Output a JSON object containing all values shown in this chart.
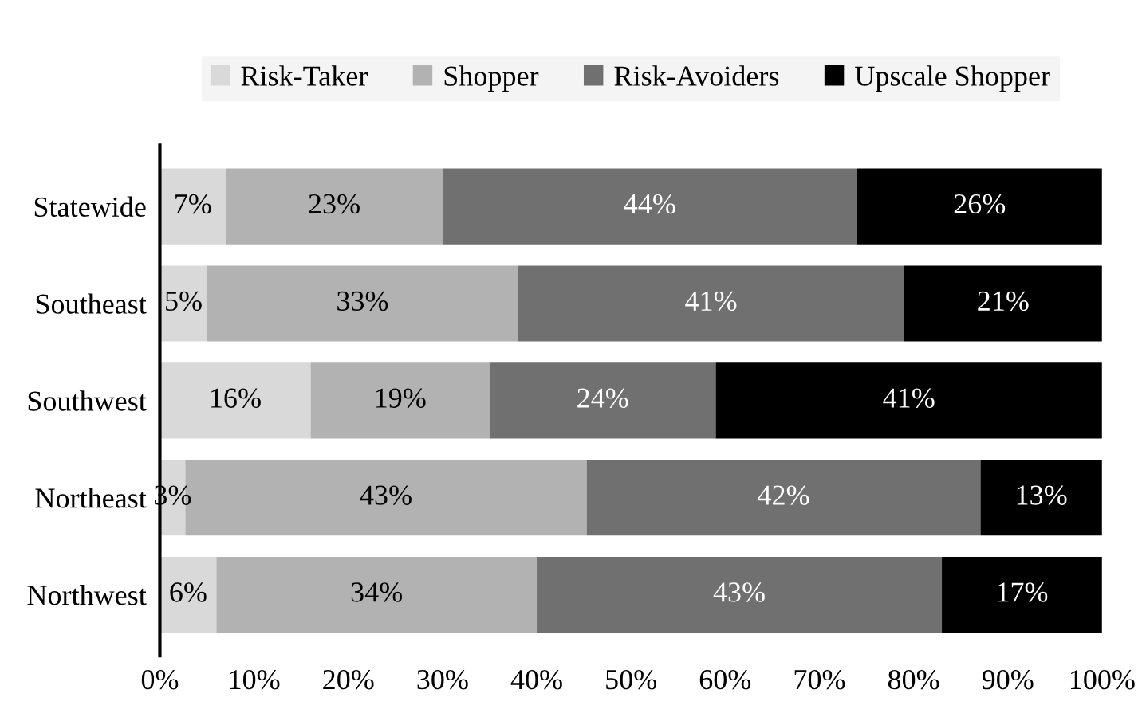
{
  "chart_data": {
    "type": "bar",
    "orientation": "horizontal",
    "stacked": true,
    "categories": [
      "Statewide",
      "Southeast",
      "Southwest",
      "Northeast",
      "Northwest"
    ],
    "series": [
      {
        "name": "Risk-Taker",
        "color": "#d9d9d9",
        "values": [
          7,
          5,
          16,
          2.7,
          6
        ],
        "value_labels": [
          "7%",
          "5%",
          "16%",
          "3%",
          "6%"
        ]
      },
      {
        "name": "Shopper",
        "color": "#b2b2b2",
        "values": [
          23,
          33,
          19,
          42.6,
          34
        ],
        "value_labels": [
          "23%",
          "33%",
          "19%",
          "43%",
          "34%"
        ]
      },
      {
        "name": "Risk-Avoiders",
        "color": "#707070",
        "values": [
          44,
          41,
          24,
          41.8,
          43
        ],
        "value_labels": [
          "44%",
          "41%",
          "24%",
          "42%",
          "43%"
        ]
      },
      {
        "name": "Upscale Shopper",
        "color": "#000000",
        "values": [
          26,
          21,
          41,
          12.9,
          17
        ],
        "value_labels": [
          "26%",
          "21%",
          "41%",
          "13%",
          "17%"
        ]
      }
    ],
    "xlim": [
      0,
      100
    ],
    "xticks": [
      {
        "value": 0,
        "label": "0%"
      },
      {
        "value": 10,
        "label": "10%"
      },
      {
        "value": 20,
        "label": "20%"
      },
      {
        "value": 30,
        "label": "30%"
      },
      {
        "value": 40,
        "label": "40%"
      },
      {
        "value": 50,
        "label": "50%"
      },
      {
        "value": 60,
        "label": "60%"
      },
      {
        "value": 70,
        "label": "70%"
      },
      {
        "value": 80,
        "label": "80%"
      },
      {
        "value": 90,
        "label": "90%"
      },
      {
        "value": 100,
        "label": "100%"
      }
    ],
    "legend": "top",
    "grid": false
  }
}
